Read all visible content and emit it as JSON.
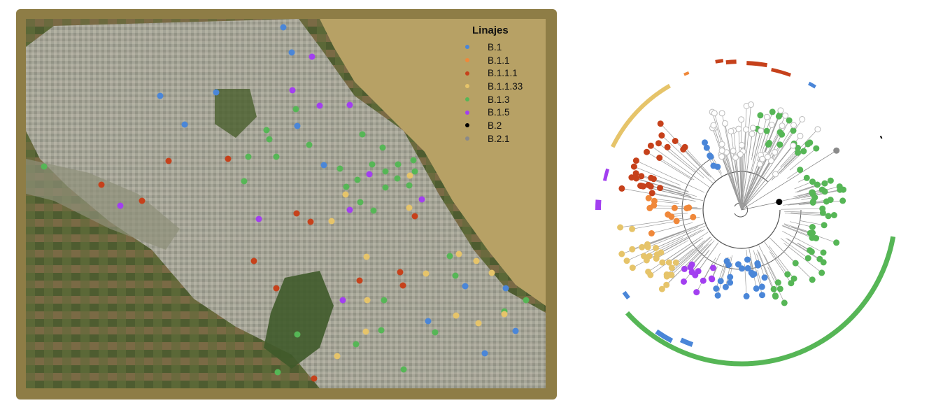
{
  "legend": {
    "title": "Linajes",
    "items": [
      {
        "label": "B.1",
        "color": "#4a86d8"
      },
      {
        "label": "B.1.1",
        "color": "#f0883a"
      },
      {
        "label": "B.1.1.1",
        "color": "#c6411b"
      },
      {
        "label": "B.1.1.33",
        "color": "#e6c46a"
      },
      {
        "label": "B.1.3",
        "color": "#56b656"
      },
      {
        "label": "B.1.5",
        "color": "#a23ff0"
      },
      {
        "label": "B.2",
        "color": "#000000"
      },
      {
        "label": "B.2.1",
        "color": "#8a8a8a"
      }
    ]
  },
  "colors": {
    "frame": "#8e7d46",
    "river": "#b7a165",
    "urban": "#a8a79b",
    "rural": "#5e6a3a",
    "tree_branch": "#9a9a9a"
  }
}
